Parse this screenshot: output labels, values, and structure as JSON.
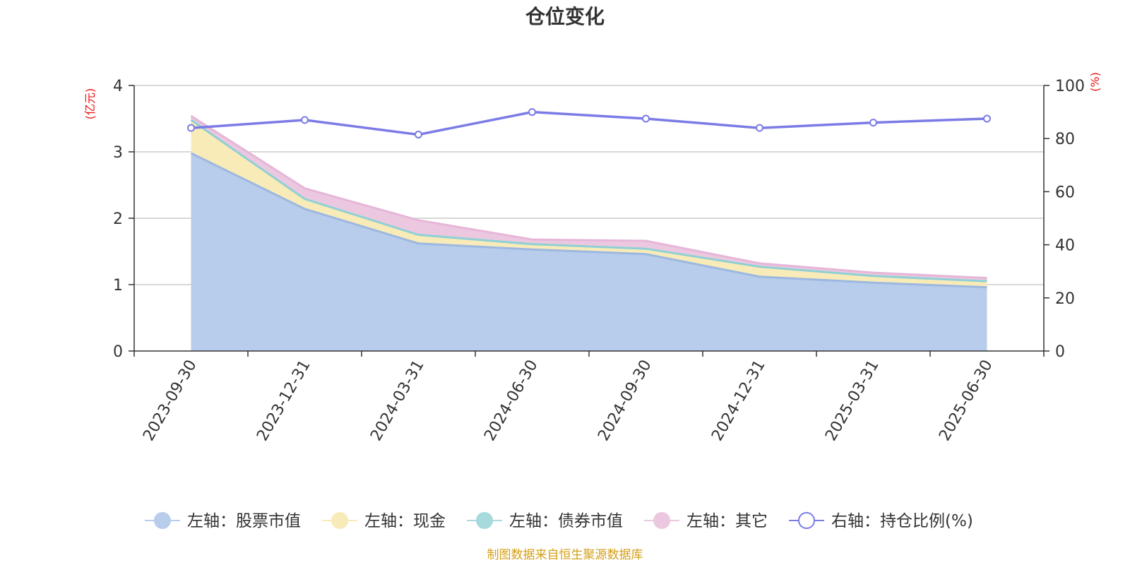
{
  "chart_data": {
    "type": "area",
    "title": "仓位变化",
    "categories": [
      "2023-09-30",
      "2023-12-31",
      "2024-03-31",
      "2024-06-30",
      "2024-09-30",
      "2024-12-31",
      "2025-03-31",
      "2025-06-30"
    ],
    "left_axis": {
      "unit": "(亿元)",
      "ylim": [
        0,
        4
      ],
      "ticks": [
        "0",
        "1",
        "2",
        "3",
        "4"
      ]
    },
    "right_axis": {
      "unit": "(%)",
      "ylim": [
        0,
        100
      ],
      "ticks": [
        "0",
        "20",
        "40",
        "60",
        "80",
        "100"
      ]
    },
    "series": [
      {
        "name": "左轴：股票市值",
        "axis": "left",
        "stack": "total",
        "color": "#9db8e0",
        "fill": "#b8cceb",
        "values": [
          2.98,
          2.14,
          1.62,
          1.53,
          1.46,
          1.12,
          1.03,
          0.96
        ]
      },
      {
        "name": "左轴：现金",
        "axis": "left",
        "stack": "total",
        "color": "#f5e6a8",
        "fill": "#f8ebb8",
        "values": [
          0.5,
          0.15,
          0.13,
          0.08,
          0.08,
          0.15,
          0.1,
          0.09
        ]
      },
      {
        "name": "左轴：债券市值",
        "axis": "left",
        "stack": "total",
        "color": "#8fd0d6",
        "fill": "#a6dadd",
        "values": [
          0,
          0,
          0,
          0,
          0,
          0,
          0,
          0
        ]
      },
      {
        "name": "左轴：其它",
        "axis": "left",
        "stack": "total",
        "color": "#e6b6d8",
        "fill": "#ebc8e0",
        "values": [
          0.06,
          0.16,
          0.22,
          0.07,
          0.12,
          0.05,
          0.05,
          0.05
        ]
      },
      {
        "name": "右轴：持仓比例(%)",
        "axis": "right",
        "type": "line",
        "color": "#7b7be6",
        "values": [
          84,
          87,
          81.5,
          90,
          87.5,
          84,
          86,
          87.5
        ]
      }
    ],
    "grid": true,
    "legend_position": "bottom"
  },
  "source_note": "制图数据来自恒生聚源数据库"
}
